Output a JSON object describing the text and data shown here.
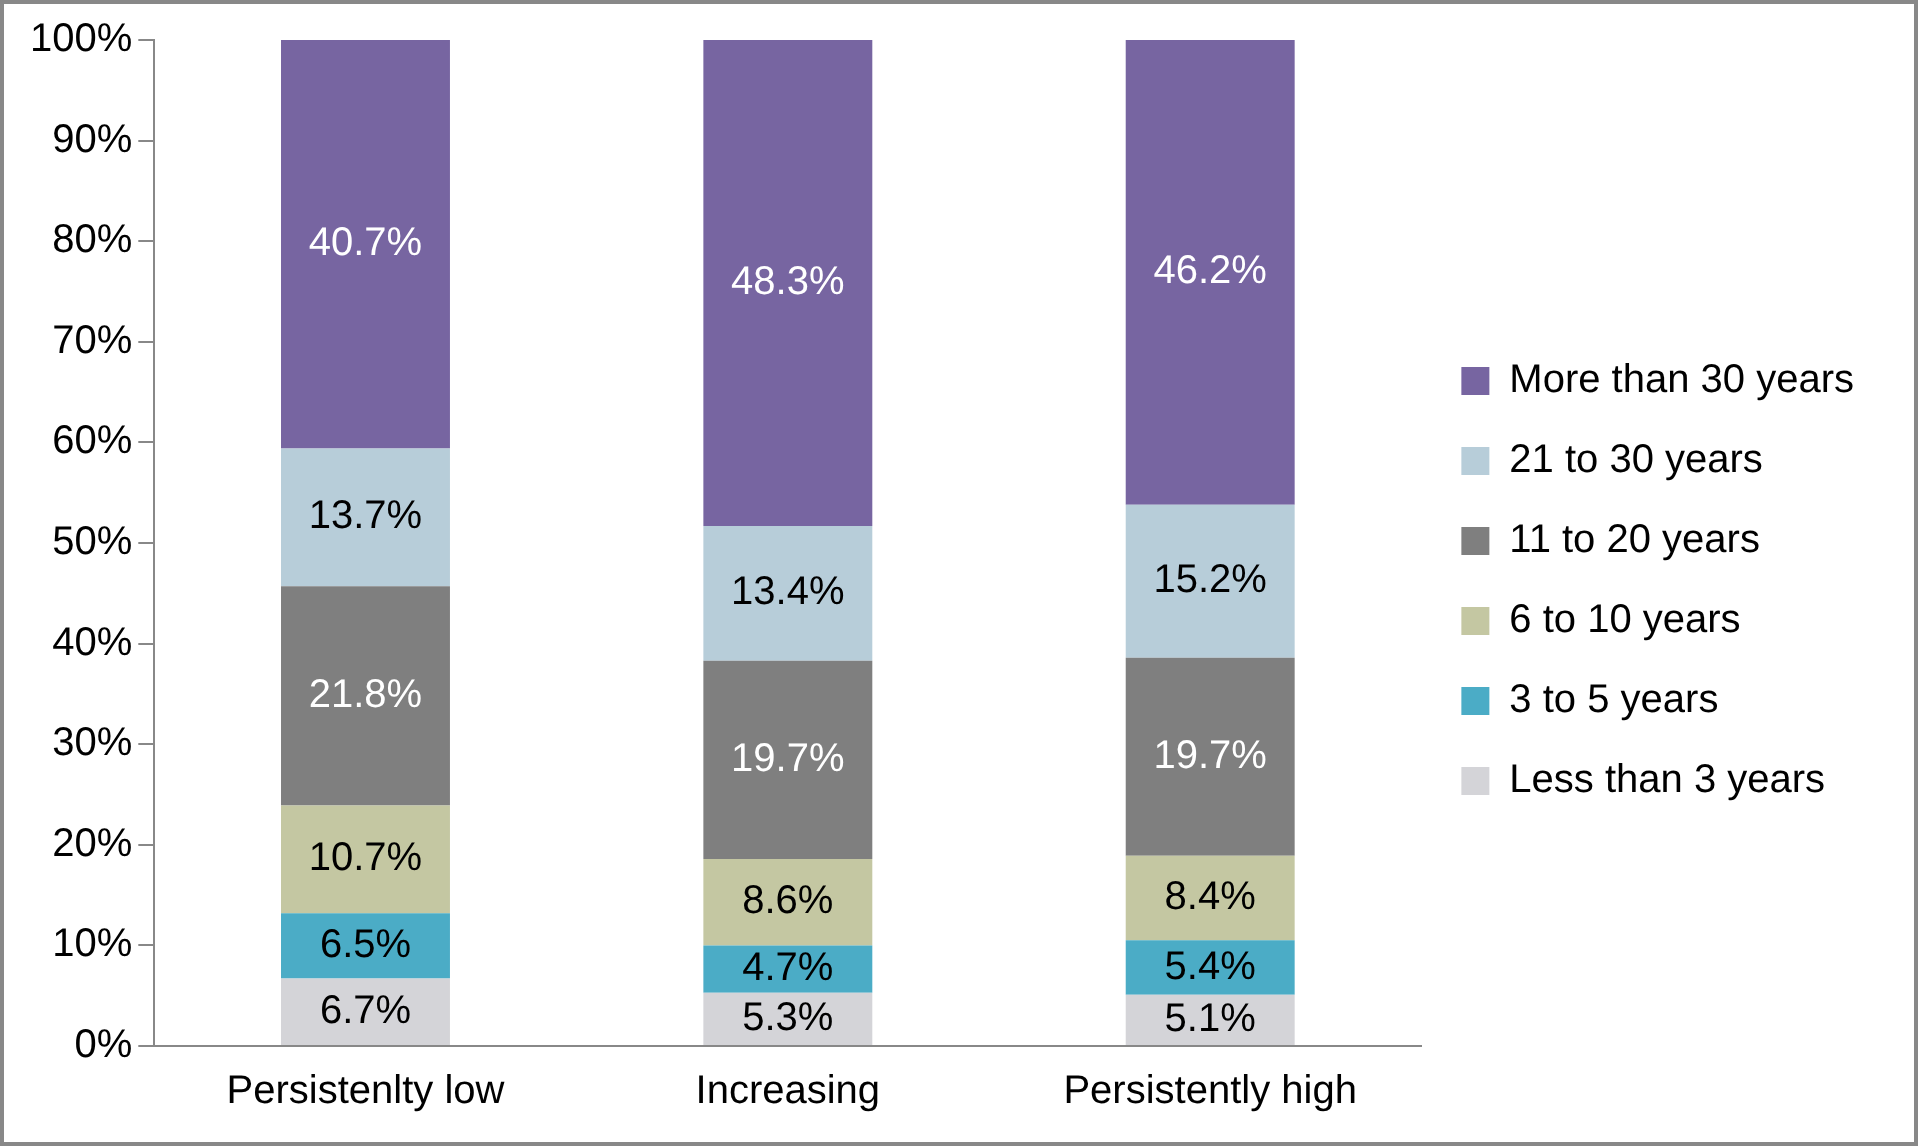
{
  "chart_data": {
    "type": "bar",
    "stacked": true,
    "categories": [
      "Persistenlty low",
      "Increasing",
      "Persistently high"
    ],
    "series": [
      {
        "name": "Less than 3 years",
        "color": "#d4d4d8",
        "values": [
          6.7,
          5.3,
          5.1
        ],
        "value_labels": [
          "6.7%",
          "5.3%",
          "5.1%"
        ]
      },
      {
        "name": "3 to 5 years",
        "color": "#4bacc6",
        "values": [
          6.5,
          4.7,
          5.4
        ],
        "value_labels": [
          "6.5%",
          "4.7%",
          "5.4%"
        ]
      },
      {
        "name": "6 to 10 years",
        "color": "#c4c7a2",
        "values": [
          10.7,
          8.6,
          8.4
        ],
        "value_labels": [
          "10.7%",
          "8.6%",
          "8.4%"
        ]
      },
      {
        "name": "11 to 20 years",
        "color": "#7f7f7f",
        "values": [
          21.8,
          19.7,
          19.7
        ],
        "value_labels": [
          "21.8%",
          "19.7%",
          "19.7%"
        ]
      },
      {
        "name": "21 to 30 years",
        "color": "#b7cdd9",
        "values": [
          13.7,
          13.4,
          15.2
        ],
        "value_labels": [
          "13.7%",
          "13.4%",
          "15.2%"
        ]
      },
      {
        "name": "More than 30 years",
        "color": "#7765a1",
        "values": [
          40.7,
          48.3,
          46.2
        ],
        "value_labels": [
          "40.7%",
          "48.3%",
          "46.2%"
        ]
      }
    ],
    "ylim": [
      0,
      100
    ],
    "yticks": [
      {
        "value": 0,
        "label": "0%"
      },
      {
        "value": 10,
        "label": "10%"
      },
      {
        "value": 20,
        "label": "20%"
      },
      {
        "value": 30,
        "label": "30%"
      },
      {
        "value": 40,
        "label": "40%"
      },
      {
        "value": 50,
        "label": "50%"
      },
      {
        "value": 60,
        "label": "60%"
      },
      {
        "value": 70,
        "label": "70%"
      },
      {
        "value": 80,
        "label": "80%"
      },
      {
        "value": 90,
        "label": "90%"
      },
      {
        "value": 100,
        "label": "100%"
      }
    ],
    "grid": false,
    "legend": "right"
  }
}
